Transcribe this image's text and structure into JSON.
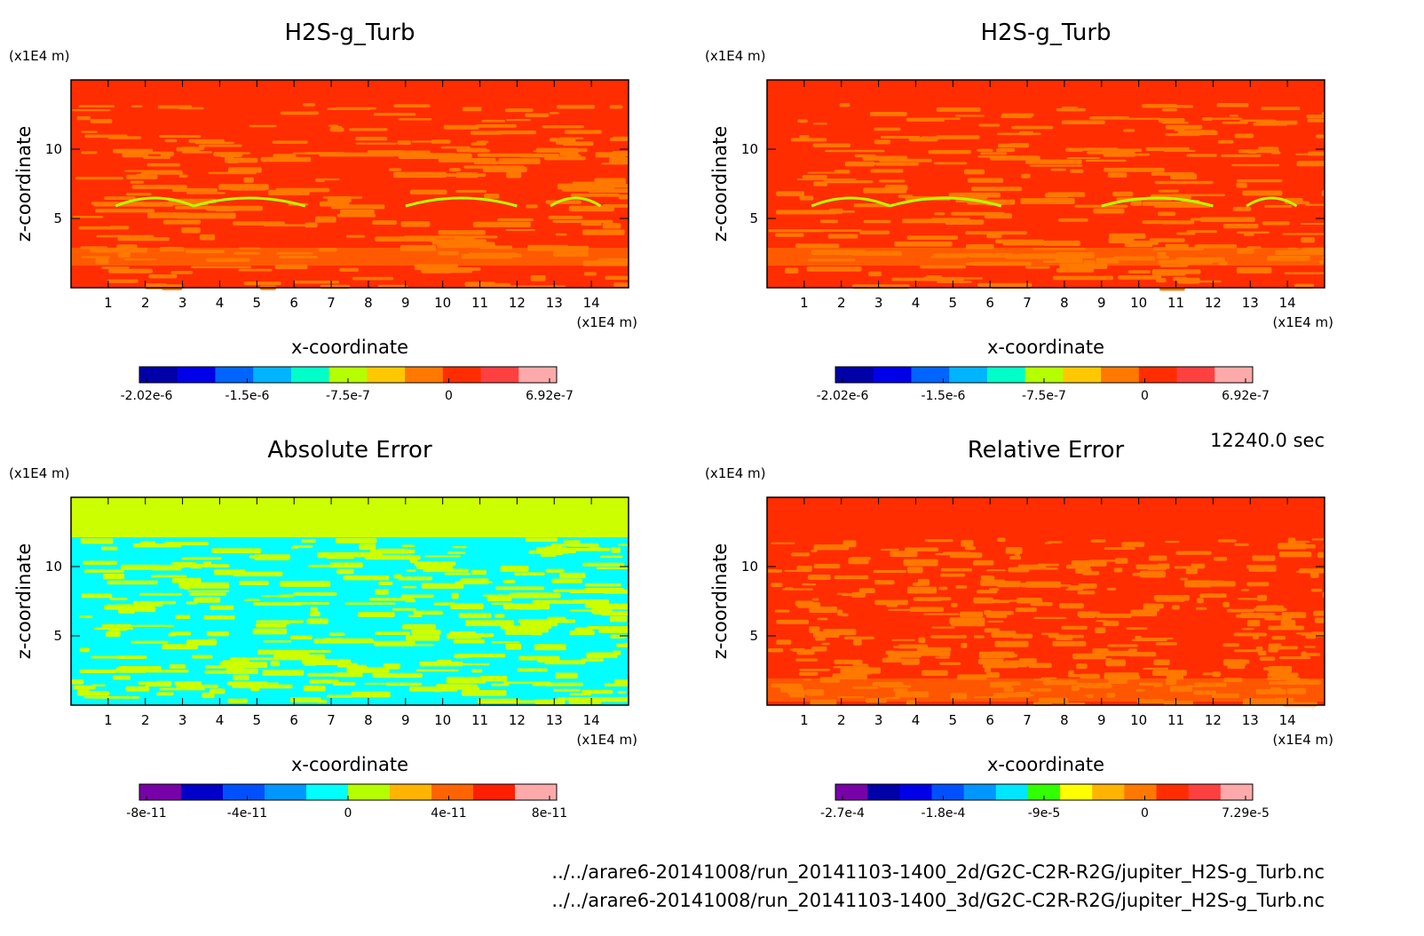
{
  "footer": {
    "time": "12240.0 sec",
    "file1": "../../arare6-20141008/run_20141103-1400_2d/G2C-C2R-R2G/jupiter_H2S-g_Turb.nc",
    "file2": "../../arare6-20141008/run_20141103-1400_3d/G2C-C2R-R2G/jupiter_H2S-g_Turb.nc"
  },
  "chart_data": [
    {
      "type": "heatmap",
      "title": "H2S-g_Turb",
      "xlabel": "x-coordinate",
      "ylabel": "z-coordinate",
      "x_unit": "(x1E4 m)",
      "y_unit": "(x1E4 m)",
      "x_ticks": [
        "1",
        "2",
        "3",
        "4",
        "5",
        "6",
        "7",
        "8",
        "9",
        "10",
        "11",
        "12",
        "13",
        "14"
      ],
      "y_ticks": [
        "5",
        "10"
      ],
      "xlim": [
        0,
        15
      ],
      "ylim": [
        0,
        15
      ],
      "colors": [
        "#0000a8",
        "#0000e8",
        "#0064ff",
        "#00b4ff",
        "#00ffc8",
        "#b4ff00",
        "#ffc800",
        "#ff7800",
        "#ff2d00",
        "#ff4040",
        "#ffaaaa"
      ],
      "colorbar_ticks": [
        "-2.02e-6",
        "-1.5e-6",
        "-7.5e-7",
        "0",
        "6.92e-7"
      ],
      "pattern": "turb",
      "bg": "#ff2d00",
      "fg": "#ff7800",
      "accent": "#b4ff00"
    },
    {
      "type": "heatmap",
      "title": "H2S-g_Turb",
      "xlabel": "x-coordinate",
      "ylabel": "z-coordinate",
      "x_unit": "(x1E4 m)",
      "y_unit": "(x1E4 m)",
      "x_ticks": [
        "1",
        "2",
        "3",
        "4",
        "5",
        "6",
        "7",
        "8",
        "9",
        "10",
        "11",
        "12",
        "13",
        "14"
      ],
      "y_ticks": [
        "5",
        "10"
      ],
      "xlim": [
        0,
        15
      ],
      "ylim": [
        0,
        15
      ],
      "colors": [
        "#0000a8",
        "#0000e8",
        "#0064ff",
        "#00b4ff",
        "#00ffc8",
        "#b4ff00",
        "#ffc800",
        "#ff7800",
        "#ff2d00",
        "#ff4040",
        "#ffaaaa"
      ],
      "colorbar_ticks": [
        "-2.02e-6",
        "-1.5e-6",
        "-7.5e-7",
        "0",
        "6.92e-7"
      ],
      "pattern": "turb",
      "bg": "#ff2d00",
      "fg": "#ff7800",
      "accent": "#b4ff00"
    },
    {
      "type": "heatmap",
      "title": "Absolute Error",
      "xlabel": "x-coordinate",
      "ylabel": "z-coordinate",
      "x_unit": "(x1E4 m)",
      "y_unit": "(x1E4 m)",
      "x_ticks": [
        "1",
        "2",
        "3",
        "4",
        "5",
        "6",
        "7",
        "8",
        "9",
        "10",
        "11",
        "12",
        "13",
        "14"
      ],
      "y_ticks": [
        "5",
        "10"
      ],
      "xlim": [
        0,
        15
      ],
      "ylim": [
        0,
        15
      ],
      "colors": [
        "#7800a8",
        "#0000c8",
        "#0050ff",
        "#0096ff",
        "#00ffff",
        "#b4ff00",
        "#ffb400",
        "#ff6400",
        "#ff1e00",
        "#ffaaaa"
      ],
      "colorbar_ticks": [
        "-8e-11",
        "-4e-11",
        "0",
        "4e-11",
        "8e-11"
      ],
      "pattern": "abs",
      "bg": "#ccff00",
      "fg": "#00ffff",
      "accent": "#ccff00"
    },
    {
      "type": "heatmap",
      "title": "Relative Error",
      "xlabel": "x-coordinate",
      "ylabel": "z-coordinate",
      "x_unit": "(x1E4 m)",
      "y_unit": "(x1E4 m)",
      "x_ticks": [
        "1",
        "2",
        "3",
        "4",
        "5",
        "6",
        "7",
        "8",
        "9",
        "10",
        "11",
        "12",
        "13",
        "14"
      ],
      "y_ticks": [
        "5",
        "10"
      ],
      "xlim": [
        0,
        15
      ],
      "ylim": [
        0,
        15
      ],
      "colors": [
        "#7800a8",
        "#0000a8",
        "#0000e8",
        "#0050ff",
        "#0096ff",
        "#00e6ff",
        "#32ff00",
        "#ffff00",
        "#ffb400",
        "#ff7800",
        "#ff2d00",
        "#ff4040",
        "#ffaaaa"
      ],
      "colorbar_ticks": [
        "-2.7e-4",
        "-1.8e-4",
        "-9e-5",
        "0",
        "7.29e-5"
      ],
      "pattern": "rel",
      "bg": "#ff2d00",
      "fg": "#ff7800",
      "accent": "#ff2d00"
    }
  ]
}
